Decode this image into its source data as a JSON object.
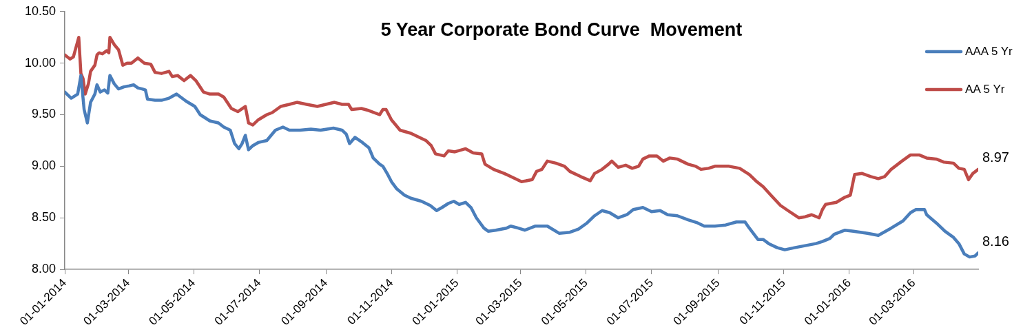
{
  "chart_data": {
    "type": "line",
    "title": "5 Year Corporate Bond Curve  Movement",
    "xlim": [
      "2014-01-01",
      "2016-04-30"
    ],
    "xticks": [
      {
        "value": "2014-01-01",
        "label": "01-01-2014"
      },
      {
        "value": "2014-03-01",
        "label": "01-03-2014"
      },
      {
        "value": "2014-05-01",
        "label": "01-05-2014"
      },
      {
        "value": "2014-07-01",
        "label": "01-07-2014"
      },
      {
        "value": "2014-09-01",
        "label": "01-09-2014"
      },
      {
        "value": "2014-11-01",
        "label": "01-11-2014"
      },
      {
        "value": "2015-01-01",
        "label": "01-01-2015"
      },
      {
        "value": "2015-03-01",
        "label": "01-03-2015"
      },
      {
        "value": "2015-05-01",
        "label": "01-05-2015"
      },
      {
        "value": "2015-07-01",
        "label": "01-07-2015"
      },
      {
        "value": "2015-09-01",
        "label": "01-09-2015"
      },
      {
        "value": "2015-11-01",
        "label": "01-11-2015"
      },
      {
        "value": "2016-01-01",
        "label": "01-01-2016"
      },
      {
        "value": "2016-03-01",
        "label": "01-03-2016"
      }
    ],
    "ylim": [
      8.0,
      10.5
    ],
    "yticks": [
      {
        "value": 8.0,
        "label": "8.00"
      },
      {
        "value": 8.5,
        "label": "8.50"
      },
      {
        "value": 9.0,
        "label": "9.00"
      },
      {
        "value": 9.5,
        "label": "9.50"
      },
      {
        "value": 10.0,
        "label": "10.00"
      },
      {
        "value": 10.5,
        "label": "10.50"
      }
    ],
    "legend": "top right",
    "marker": "none",
    "line_style": "solid",
    "series": [
      {
        "name": "AAA 5 Yr",
        "color": "#4a7ebb",
        "x": [
          "2014-01-01",
          "2014-01-07",
          "2014-01-13",
          "2014-01-16",
          "2014-01-19",
          "2014-01-22",
          "2014-01-25",
          "2014-01-29",
          "2014-01-31",
          "2014-02-03",
          "2014-02-07",
          "2014-02-10",
          "2014-02-12",
          "2014-02-16",
          "2014-02-20",
          "2014-02-25",
          "2014-03-02",
          "2014-03-06",
          "2014-03-10",
          "2014-03-14",
          "2014-03-17",
          "2014-03-19",
          "2014-03-26",
          "2014-04-01",
          "2014-04-08",
          "2014-04-15",
          "2014-04-24",
          "2014-05-02",
          "2014-05-07",
          "2014-05-16",
          "2014-05-24",
          "2014-05-29",
          "2014-06-04",
          "2014-06-08",
          "2014-06-12",
          "2014-06-15",
          "2014-06-18",
          "2014-06-21",
          "2014-06-25",
          "2014-06-30",
          "2014-07-08",
          "2014-07-16",
          "2014-07-23",
          "2014-07-29",
          "2014-08-08",
          "2014-08-18",
          "2014-08-27",
          "2014-09-08",
          "2014-09-16",
          "2014-09-20",
          "2014-09-23",
          "2014-09-28",
          "2014-10-05",
          "2014-10-11",
          "2014-10-15",
          "2014-10-21",
          "2014-10-24",
          "2014-10-28",
          "2014-11-01",
          "2014-11-06",
          "2014-11-13",
          "2014-11-19",
          "2014-11-29",
          "2014-12-07",
          "2014-12-13",
          "2014-12-18",
          "2014-12-24",
          "2014-12-29",
          "2015-01-03",
          "2015-01-09",
          "2015-01-14",
          "2015-01-19",
          "2015-01-26",
          "2015-01-30",
          "2015-02-06",
          "2015-02-16",
          "2015-02-20",
          "2015-02-27",
          "2015-03-05",
          "2015-03-15",
          "2015-03-26",
          "2015-04-06",
          "2015-04-16",
          "2015-04-24",
          "2015-05-02",
          "2015-05-09",
          "2015-05-16",
          "2015-05-23",
          "2015-05-31",
          "2015-06-08",
          "2015-06-14",
          "2015-06-23",
          "2015-07-01",
          "2015-07-09",
          "2015-07-16",
          "2015-07-25",
          "2015-08-04",
          "2015-08-13",
          "2015-08-19",
          "2015-08-29",
          "2015-09-08",
          "2015-09-18",
          "2015-09-26",
          "2015-09-30",
          "2015-10-08",
          "2015-10-13",
          "2015-10-18",
          "2015-10-26",
          "2015-11-02",
          "2015-11-11",
          "2015-11-21",
          "2015-12-01",
          "2015-12-07",
          "2015-12-14",
          "2015-12-18",
          "2015-12-28",
          "2016-01-05",
          "2016-01-18",
          "2016-01-28",
          "2016-02-09",
          "2016-02-20",
          "2016-02-27",
          "2016-03-03",
          "2016-03-11",
          "2016-03-13",
          "2016-03-22",
          "2016-03-30",
          "2016-04-07",
          "2016-04-12",
          "2016-04-17",
          "2016-04-22",
          "2016-04-27",
          "2016-04-30"
        ],
        "values": [
          9.72,
          9.66,
          9.7,
          9.88,
          9.55,
          9.42,
          9.62,
          9.7,
          9.79,
          9.72,
          9.74,
          9.71,
          9.88,
          9.8,
          9.75,
          9.77,
          9.78,
          9.79,
          9.76,
          9.75,
          9.74,
          9.65,
          9.64,
          9.64,
          9.66,
          9.7,
          9.63,
          9.58,
          9.5,
          9.44,
          9.42,
          9.38,
          9.35,
          9.22,
          9.17,
          9.22,
          9.3,
          9.16,
          9.2,
          9.23,
          9.25,
          9.35,
          9.38,
          9.35,
          9.35,
          9.36,
          9.35,
          9.37,
          9.35,
          9.31,
          9.22,
          9.28,
          9.23,
          9.18,
          9.08,
          9.02,
          9.0,
          8.93,
          8.85,
          8.78,
          8.72,
          8.69,
          8.66,
          8.62,
          8.57,
          8.6,
          8.64,
          8.66,
          8.63,
          8.65,
          8.6,
          8.5,
          8.4,
          8.37,
          8.38,
          8.4,
          8.42,
          8.4,
          8.38,
          8.42,
          8.42,
          8.35,
          8.36,
          8.39,
          8.45,
          8.52,
          8.57,
          8.55,
          8.5,
          8.53,
          8.58,
          8.6,
          8.56,
          8.57,
          8.53,
          8.52,
          8.48,
          8.45,
          8.42,
          8.42,
          8.43,
          8.46,
          8.46,
          8.4,
          8.29,
          8.29,
          8.25,
          8.21,
          8.19,
          8.21,
          8.23,
          8.25,
          8.27,
          8.3,
          8.34,
          8.38,
          8.37,
          8.35,
          8.33,
          8.4,
          8.47,
          8.55,
          8.58,
          8.58,
          8.53,
          8.45,
          8.37,
          8.31,
          8.25,
          8.15,
          8.12,
          8.13,
          8.16
        ],
        "value_labels": [
          null,
          null,
          null,
          null,
          null,
          null,
          null,
          null,
          null,
          null,
          null,
          null,
          null,
          null,
          null,
          null,
          null,
          null,
          null,
          null,
          null,
          null,
          null,
          null,
          null,
          null,
          null,
          null,
          null,
          null,
          null,
          null,
          null,
          null,
          null,
          null,
          null,
          null,
          null,
          null,
          null,
          null,
          null,
          null,
          null,
          null,
          null,
          null,
          null,
          null,
          null,
          null,
          null,
          null,
          null,
          null,
          null,
          null,
          null,
          null,
          null,
          null,
          null,
          null,
          null,
          null,
          null,
          null,
          null,
          null,
          null,
          null,
          null,
          null,
          null,
          null,
          null,
          null,
          null,
          null,
          null,
          null,
          null,
          null,
          null,
          null,
          null,
          null,
          null,
          null,
          null,
          null,
          null,
          null,
          null,
          null,
          null,
          null,
          null,
          null,
          null,
          null,
          null,
          null,
          null,
          null,
          null,
          null,
          null,
          null,
          null,
          null,
          null,
          null,
          null,
          null,
          null,
          null,
          null,
          null,
          null,
          null,
          null,
          null,
          null,
          null,
          null,
          null,
          null,
          null,
          null,
          null,
          "8.16"
        ]
      },
      {
        "name": "AA 5 Yr",
        "color": "#be4b48",
        "x": [
          "2014-01-01",
          "2014-01-06",
          "2014-01-09",
          "2014-01-14",
          "2014-01-16",
          "2014-01-18",
          "2014-01-20",
          "2014-01-23",
          "2014-01-25",
          "2014-01-29",
          "2014-01-31",
          "2014-02-02",
          "2014-02-05",
          "2014-02-09",
          "2014-02-11",
          "2014-02-12",
          "2014-02-16",
          "2014-02-20",
          "2014-02-24",
          "2014-02-28",
          "2014-03-04",
          "2014-03-10",
          "2014-03-16",
          "2014-03-22",
          "2014-03-26",
          "2014-04-01",
          "2014-04-08",
          "2014-04-11",
          "2014-04-16",
          "2014-04-22",
          "2014-04-28",
          "2014-05-03",
          "2014-05-10",
          "2014-05-16",
          "2014-05-24",
          "2014-05-29",
          "2014-06-05",
          "2014-06-11",
          "2014-06-18",
          "2014-06-21",
          "2014-06-25",
          "2014-06-30",
          "2014-07-08",
          "2014-07-13",
          "2014-07-21",
          "2014-07-29",
          "2014-08-05",
          "2014-08-14",
          "2014-08-24",
          "2014-09-01",
          "2014-09-09",
          "2014-09-16",
          "2014-09-22",
          "2014-09-25",
          "2014-10-04",
          "2014-10-11",
          "2014-10-21",
          "2014-10-24",
          "2014-10-27",
          "2014-11-01",
          "2014-11-09",
          "2014-11-19",
          "2014-11-27",
          "2014-12-03",
          "2014-12-08",
          "2014-12-12",
          "2014-12-20",
          "2014-12-24",
          "2014-12-30",
          "2015-01-09",
          "2015-01-16",
          "2015-01-24",
          "2015-01-27",
          "2015-02-04",
          "2015-02-14",
          "2015-02-20",
          "2015-03-02",
          "2015-03-12",
          "2015-03-16",
          "2015-03-21",
          "2015-03-26",
          "2015-04-03",
          "2015-04-11",
          "2015-04-16",
          "2015-04-26",
          "2015-05-05",
          "2015-05-09",
          "2015-05-16",
          "2015-05-22",
          "2015-05-25",
          "2015-05-31",
          "2015-06-07",
          "2015-06-13",
          "2015-06-19",
          "2015-06-23",
          "2015-06-29",
          "2015-07-06",
          "2015-07-12",
          "2015-07-18",
          "2015-07-25",
          "2015-08-04",
          "2015-08-11",
          "2015-08-16",
          "2015-08-23",
          "2015-08-29",
          "2015-09-11",
          "2015-09-21",
          "2015-09-30",
          "2015-10-07",
          "2015-10-13",
          "2015-10-20",
          "2015-10-29",
          "2015-11-05",
          "2015-11-15",
          "2015-11-21",
          "2015-11-27",
          "2015-12-04",
          "2015-12-07",
          "2015-12-10",
          "2015-12-20",
          "2015-12-28",
          "2016-01-02",
          "2016-01-06",
          "2016-01-13",
          "2016-01-21",
          "2016-01-28",
          "2016-02-03",
          "2016-02-09",
          "2016-02-19",
          "2016-02-27",
          "2016-03-06",
          "2016-03-13",
          "2016-03-22",
          "2016-03-29",
          "2016-04-07",
          "2016-04-12",
          "2016-04-17",
          "2016-04-21",
          "2016-04-25",
          "2016-04-30"
        ],
        "values": [
          10.08,
          10.04,
          10.06,
          10.25,
          9.9,
          9.85,
          9.7,
          9.8,
          9.92,
          9.98,
          10.08,
          10.1,
          10.09,
          10.12,
          10.1,
          10.25,
          10.18,
          10.13,
          9.98,
          10.0,
          10.0,
          10.05,
          10.0,
          9.99,
          9.91,
          9.9,
          9.92,
          9.87,
          9.88,
          9.83,
          9.88,
          9.83,
          9.72,
          9.7,
          9.7,
          9.67,
          9.56,
          9.53,
          9.58,
          9.42,
          9.4,
          9.45,
          9.5,
          9.52,
          9.58,
          9.6,
          9.62,
          9.6,
          9.58,
          9.6,
          9.62,
          9.6,
          9.6,
          9.55,
          9.56,
          9.54,
          9.5,
          9.55,
          9.55,
          9.45,
          9.35,
          9.32,
          9.28,
          9.25,
          9.2,
          9.12,
          9.1,
          9.15,
          9.14,
          9.17,
          9.13,
          9.12,
          9.02,
          8.97,
          8.93,
          8.9,
          8.85,
          8.87,
          8.95,
          8.97,
          9.05,
          9.03,
          9.0,
          8.95,
          8.9,
          8.86,
          8.93,
          8.97,
          9.02,
          9.05,
          8.99,
          9.01,
          8.98,
          9.0,
          9.07,
          9.1,
          9.1,
          9.05,
          9.08,
          9.07,
          9.02,
          9.0,
          8.97,
          8.98,
          9.0,
          9.0,
          8.98,
          8.92,
          8.85,
          8.8,
          8.72,
          8.62,
          8.57,
          8.5,
          8.51,
          8.53,
          8.5,
          8.58,
          8.63,
          8.65,
          8.7,
          8.72,
          8.92,
          8.93,
          8.9,
          8.88,
          8.9,
          8.97,
          9.05,
          9.11,
          9.11,
          9.08,
          9.07,
          9.04,
          9.03,
          8.98,
          8.97,
          8.87,
          8.93,
          8.97
        ],
        "value_labels": [
          null,
          null,
          null,
          null,
          null,
          null,
          null,
          null,
          null,
          null,
          null,
          null,
          null,
          null,
          null,
          null,
          null,
          null,
          null,
          null,
          null,
          null,
          null,
          null,
          null,
          null,
          null,
          null,
          null,
          null,
          null,
          null,
          null,
          null,
          null,
          null,
          null,
          null,
          null,
          null,
          null,
          null,
          null,
          null,
          null,
          null,
          null,
          null,
          null,
          null,
          null,
          null,
          null,
          null,
          null,
          null,
          null,
          null,
          null,
          null,
          null,
          null,
          null,
          null,
          null,
          null,
          null,
          null,
          null,
          null,
          null,
          null,
          null,
          null,
          null,
          null,
          null,
          null,
          null,
          null,
          null,
          null,
          null,
          null,
          null,
          null,
          null,
          null,
          null,
          null,
          null,
          null,
          null,
          null,
          null,
          null,
          null,
          null,
          null,
          null,
          null,
          null,
          null,
          null,
          null,
          null,
          null,
          null,
          null,
          null,
          null,
          null,
          null,
          null,
          null,
          null,
          null,
          null,
          null,
          null,
          null,
          null,
          null,
          null,
          null,
          null,
          null,
          null,
          null,
          null,
          null,
          null,
          null,
          null,
          null,
          null,
          null,
          null,
          null,
          "8.97"
        ]
      }
    ]
  }
}
